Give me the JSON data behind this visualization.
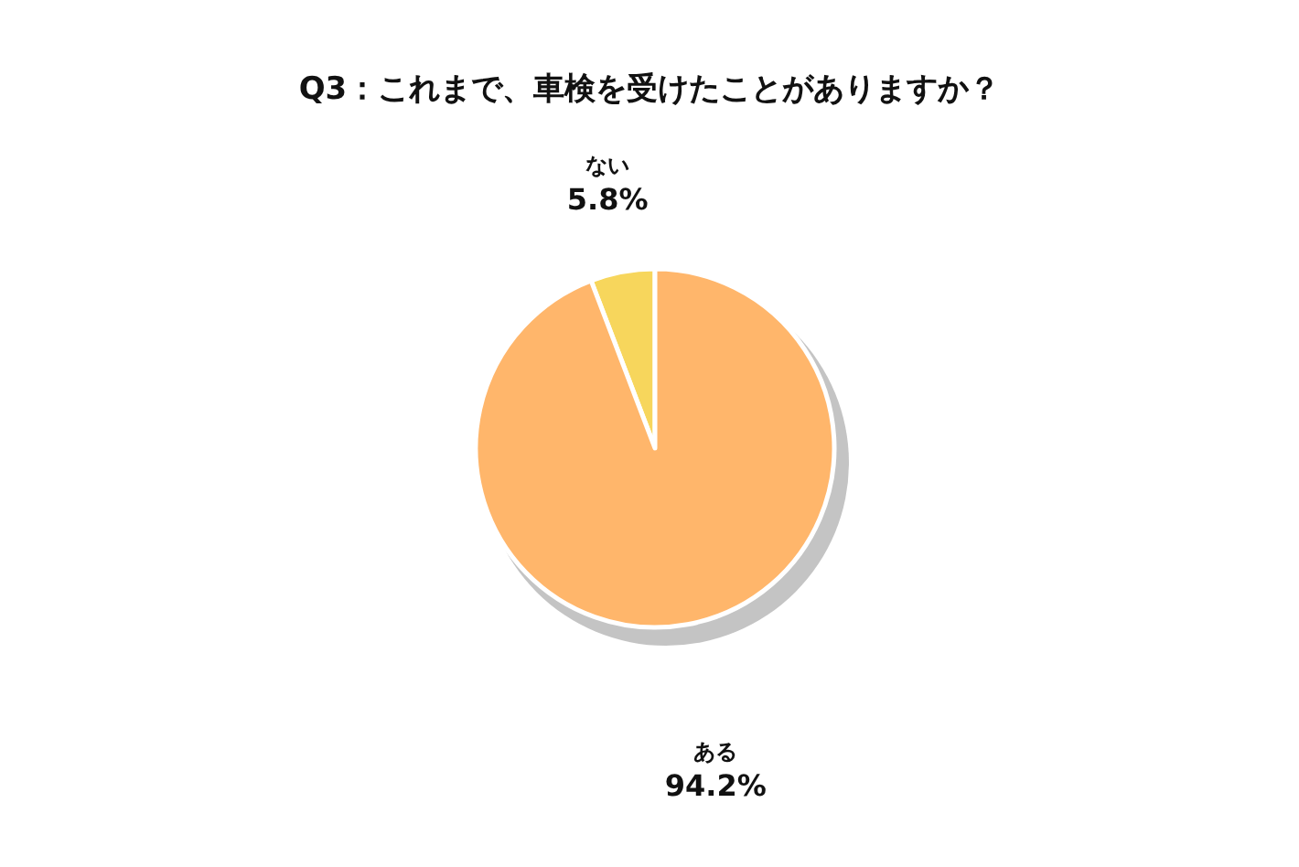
{
  "chart_data": {
    "type": "pie",
    "title": "Q3：これまで、車検を受けたことがありますか？",
    "categories": [
      "ない",
      "ある"
    ],
    "values": [
      5.8,
      94.2
    ],
    "colors": [
      "#f7d65c",
      "#ffb66b"
    ],
    "value_labels": [
      "5.8%",
      "94.2%"
    ],
    "legend": false
  }
}
